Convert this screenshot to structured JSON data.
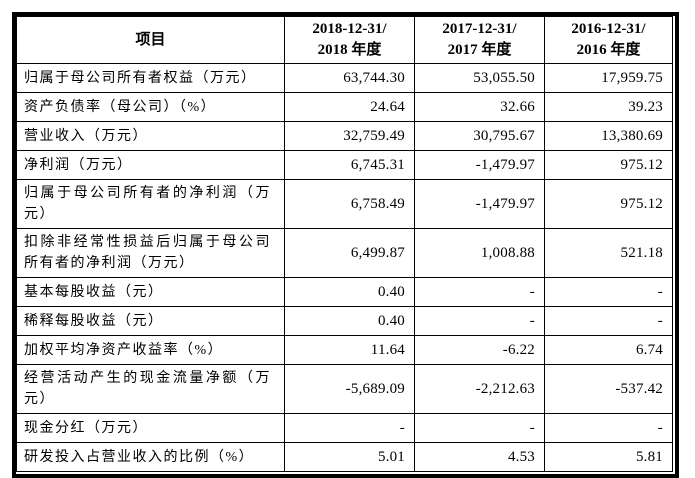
{
  "table": {
    "columns": {
      "item_header": "项目",
      "periods": [
        {
          "line1": "2018-12-31/",
          "line2": "2018 年度"
        },
        {
          "line1": "2017-12-31/",
          "line2": "2017 年度"
        },
        {
          "line1": "2016-12-31/",
          "line2": "2016 年度"
        }
      ]
    },
    "rows": [
      {
        "label": "归属于母公司所有者权益（万元）",
        "values": [
          "63,744.30",
          "53,055.50",
          "17,959.75"
        ]
      },
      {
        "label": "资产负债率（母公司）（%）",
        "values": [
          "24.64",
          "32.66",
          "39.23"
        ]
      },
      {
        "label": "营业收入（万元）",
        "values": [
          "32,759.49",
          "30,795.67",
          "13,380.69"
        ]
      },
      {
        "label": "净利润（万元）",
        "values": [
          "6,745.31",
          "-1,479.97",
          "975.12"
        ]
      },
      {
        "label": "归属于母公司所有者的净利润（万元）",
        "values": [
          "6,758.49",
          "-1,479.97",
          "975.12"
        ]
      },
      {
        "label": "扣除非经常性损益后归属于母公司所有者的净利润（万元）",
        "values": [
          "6,499.87",
          "1,008.88",
          "521.18"
        ]
      },
      {
        "label": "基本每股收益（元）",
        "values": [
          "0.40",
          "-",
          "-"
        ]
      },
      {
        "label": "稀释每股收益（元）",
        "values": [
          "0.40",
          "-",
          "-"
        ]
      },
      {
        "label": "加权平均净资产收益率（%）",
        "values": [
          "11.64",
          "-6.22",
          "6.74"
        ]
      },
      {
        "label": "经营活动产生的现金流量净额（万元）",
        "values": [
          "-5,689.09",
          "-2,212.63",
          "-537.42"
        ]
      },
      {
        "label": "现金分红（万元）",
        "values": [
          "-",
          "-",
          "-"
        ]
      },
      {
        "label": "研发投入占营业收入的比例（%）",
        "values": [
          "5.01",
          "4.53",
          "5.81"
        ]
      }
    ]
  }
}
